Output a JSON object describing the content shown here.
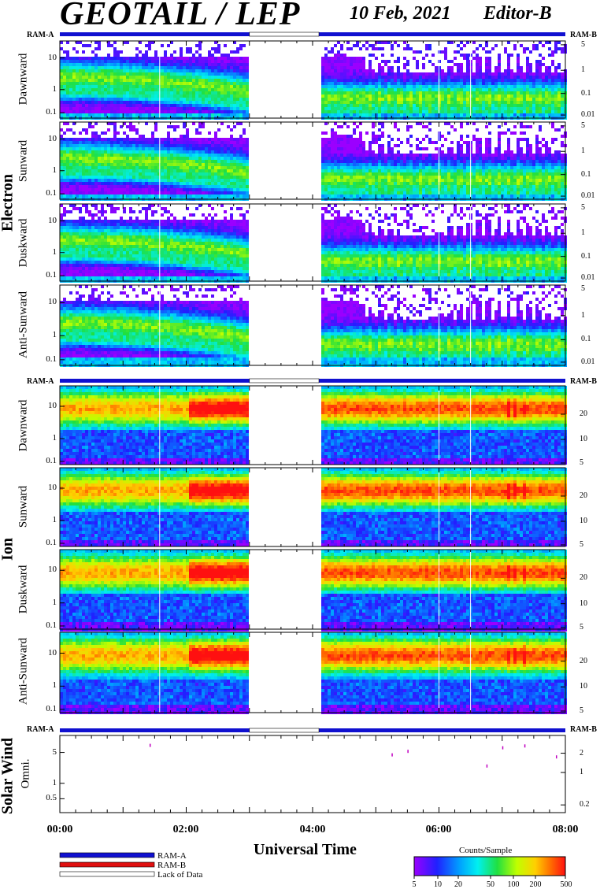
{
  "header": {
    "title": "GEOTAIL / LEP",
    "date": "10 Feb, 2021",
    "editor": "Editor-B"
  },
  "groups": {
    "electron": "Electron",
    "ion": "Ion",
    "solar": "Solar Wind"
  },
  "ram": {
    "a": "RAM-A",
    "b": "RAM-B"
  },
  "xaxis": {
    "label": "Universal Time",
    "ticks": [
      "00:00",
      "02:00",
      "04:00",
      "06:00",
      "08:00"
    ],
    "range_hours": [
      0,
      8
    ]
  },
  "legend": {
    "ram_a": "RAM-A",
    "ram_b": "RAM-B",
    "no_data": "Lack of Data",
    "color_a": "#1010d0",
    "color_b": "#e01010"
  },
  "colorbar": {
    "title": "Counts/Sample",
    "ticks": [
      "5",
      "10",
      "20",
      "50",
      "100",
      "200",
      "500"
    ]
  },
  "chart_data": {
    "type": "heatmap",
    "data_gap_hours": [
      3.0,
      4.1
    ],
    "electron": {
      "left_axis_ticks": [
        "10",
        "1",
        "0.1"
      ],
      "right_axis_ticks": [
        "5",
        "1",
        "0.1",
        "0.01"
      ],
      "panels": [
        "Dawnward",
        "Sunward",
        "Duskward",
        "Anti-Sunward"
      ]
    },
    "ion": {
      "left_axis_ticks": [
        "10",
        "1",
        "0.1"
      ],
      "right_axis_ticks": [
        "20",
        "10",
        "5"
      ],
      "panels": [
        "Dawnward",
        "Sunward",
        "Duskward",
        "Anti-Sunward"
      ]
    },
    "solar_wind": {
      "panel": "Omni.",
      "left_axis_ticks": [
        "5",
        "1",
        "0.5"
      ],
      "right_axis_ticks": [
        "2",
        "1",
        "0.2"
      ],
      "points": [
        [
          1.42,
          6.2
        ],
        [
          5.25,
          3.6
        ],
        [
          5.5,
          4.4
        ],
        [
          6.75,
          1.9
        ],
        [
          7.0,
          5.4
        ],
        [
          7.35,
          6.0
        ],
        [
          7.85,
          3.2
        ]
      ]
    }
  }
}
